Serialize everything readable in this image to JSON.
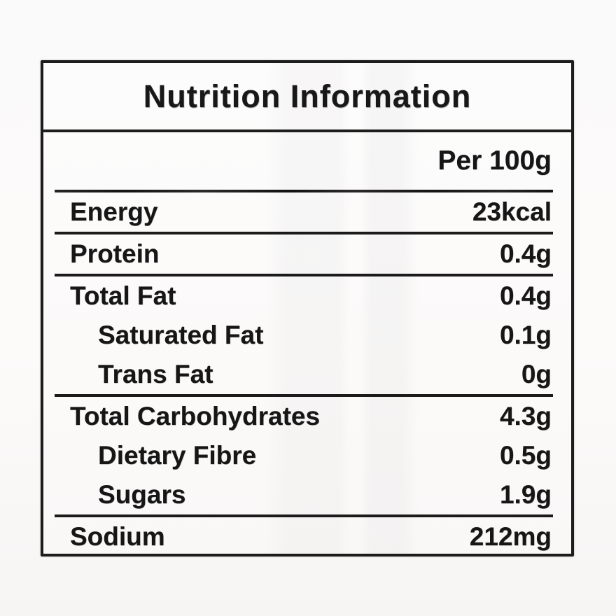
{
  "label": {
    "title": "Nutrition Information",
    "column_header": "Per 100g",
    "rows": [
      {
        "name": "Energy",
        "value": "23kcal",
        "indent": false,
        "rule_below": true
      },
      {
        "name": "Protein",
        "value": "0.4g",
        "indent": false,
        "rule_below": true
      },
      {
        "name": "Total Fat",
        "value": "0.4g",
        "indent": false,
        "rule_below": false
      },
      {
        "name": "Saturated Fat",
        "value": "0.1g",
        "indent": true,
        "rule_below": false
      },
      {
        "name": "Trans Fat",
        "value": "0g",
        "indent": true,
        "rule_below": true
      },
      {
        "name": "Total Carbohydrates",
        "value": "4.3g",
        "indent": false,
        "rule_below": false
      },
      {
        "name": "Dietary Fibre",
        "value": "0.5g",
        "indent": true,
        "rule_below": false
      },
      {
        "name": "Sugars",
        "value": "1.9g",
        "indent": true,
        "rule_below": true
      },
      {
        "name": "Sodium",
        "value": "212mg",
        "indent": false,
        "rule_below": false
      }
    ],
    "colors": {
      "text": "#161616",
      "border": "#1d1c1c",
      "paper": "#fbfaf9"
    }
  }
}
